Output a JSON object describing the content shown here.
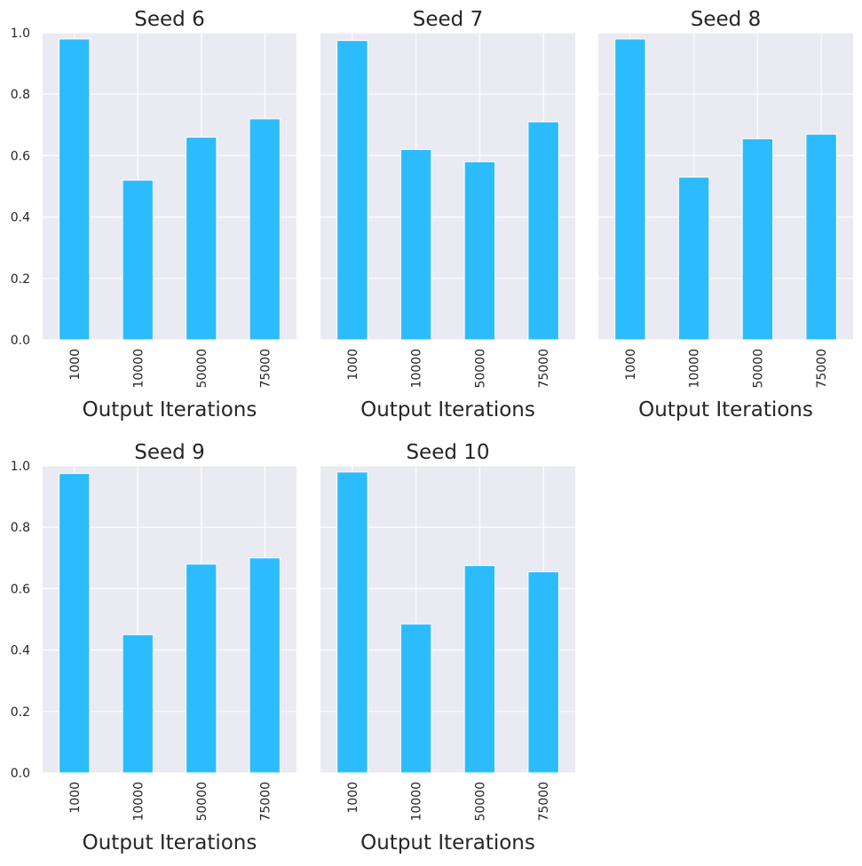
{
  "style": {
    "bar_color": "#2cbcfe",
    "plot_background": "#eaeaf2",
    "grid_color": "#ffffff",
    "text_color": "#262626"
  },
  "chart_data": [
    {
      "type": "bar",
      "title": "Seed 6",
      "xlabel": "Output Iterations",
      "ylabel": "",
      "categories": [
        "1000",
        "10000",
        "50000",
        "75000"
      ],
      "values": [
        0.98,
        0.52,
        0.66,
        0.72
      ],
      "ylim": [
        0,
        1.0
      ],
      "yticks": [
        "0.0",
        "0.2",
        "0.4",
        "0.6",
        "0.8",
        "1.0"
      ],
      "grid": true
    },
    {
      "type": "bar",
      "title": "Seed 7",
      "xlabel": "Output Iterations",
      "ylabel": "",
      "categories": [
        "1000",
        "10000",
        "50000",
        "75000"
      ],
      "values": [
        0.975,
        0.62,
        0.58,
        0.71
      ],
      "ylim": [
        0,
        1.0
      ],
      "grid": true
    },
    {
      "type": "bar",
      "title": "Seed 8",
      "xlabel": "Output Iterations",
      "ylabel": "",
      "categories": [
        "1000",
        "10000",
        "50000",
        "75000"
      ],
      "values": [
        0.98,
        0.53,
        0.655,
        0.67
      ],
      "ylim": [
        0,
        1.0
      ],
      "grid": true
    },
    {
      "type": "bar",
      "title": "Seed 9",
      "xlabel": "Output Iterations",
      "ylabel": "",
      "categories": [
        "1000",
        "10000",
        "50000",
        "75000"
      ],
      "values": [
        0.975,
        0.45,
        0.68,
        0.7
      ],
      "ylim": [
        0,
        1.0
      ],
      "yticks": [
        "0.0",
        "0.2",
        "0.4",
        "0.6",
        "0.8",
        "1.0"
      ],
      "grid": true
    },
    {
      "type": "bar",
      "title": "Seed 10",
      "xlabel": "Output Iterations",
      "ylabel": "",
      "categories": [
        "1000",
        "10000",
        "50000",
        "75000"
      ],
      "values": [
        0.98,
        0.485,
        0.675,
        0.655
      ],
      "ylim": [
        0,
        1.0
      ],
      "grid": true
    }
  ]
}
